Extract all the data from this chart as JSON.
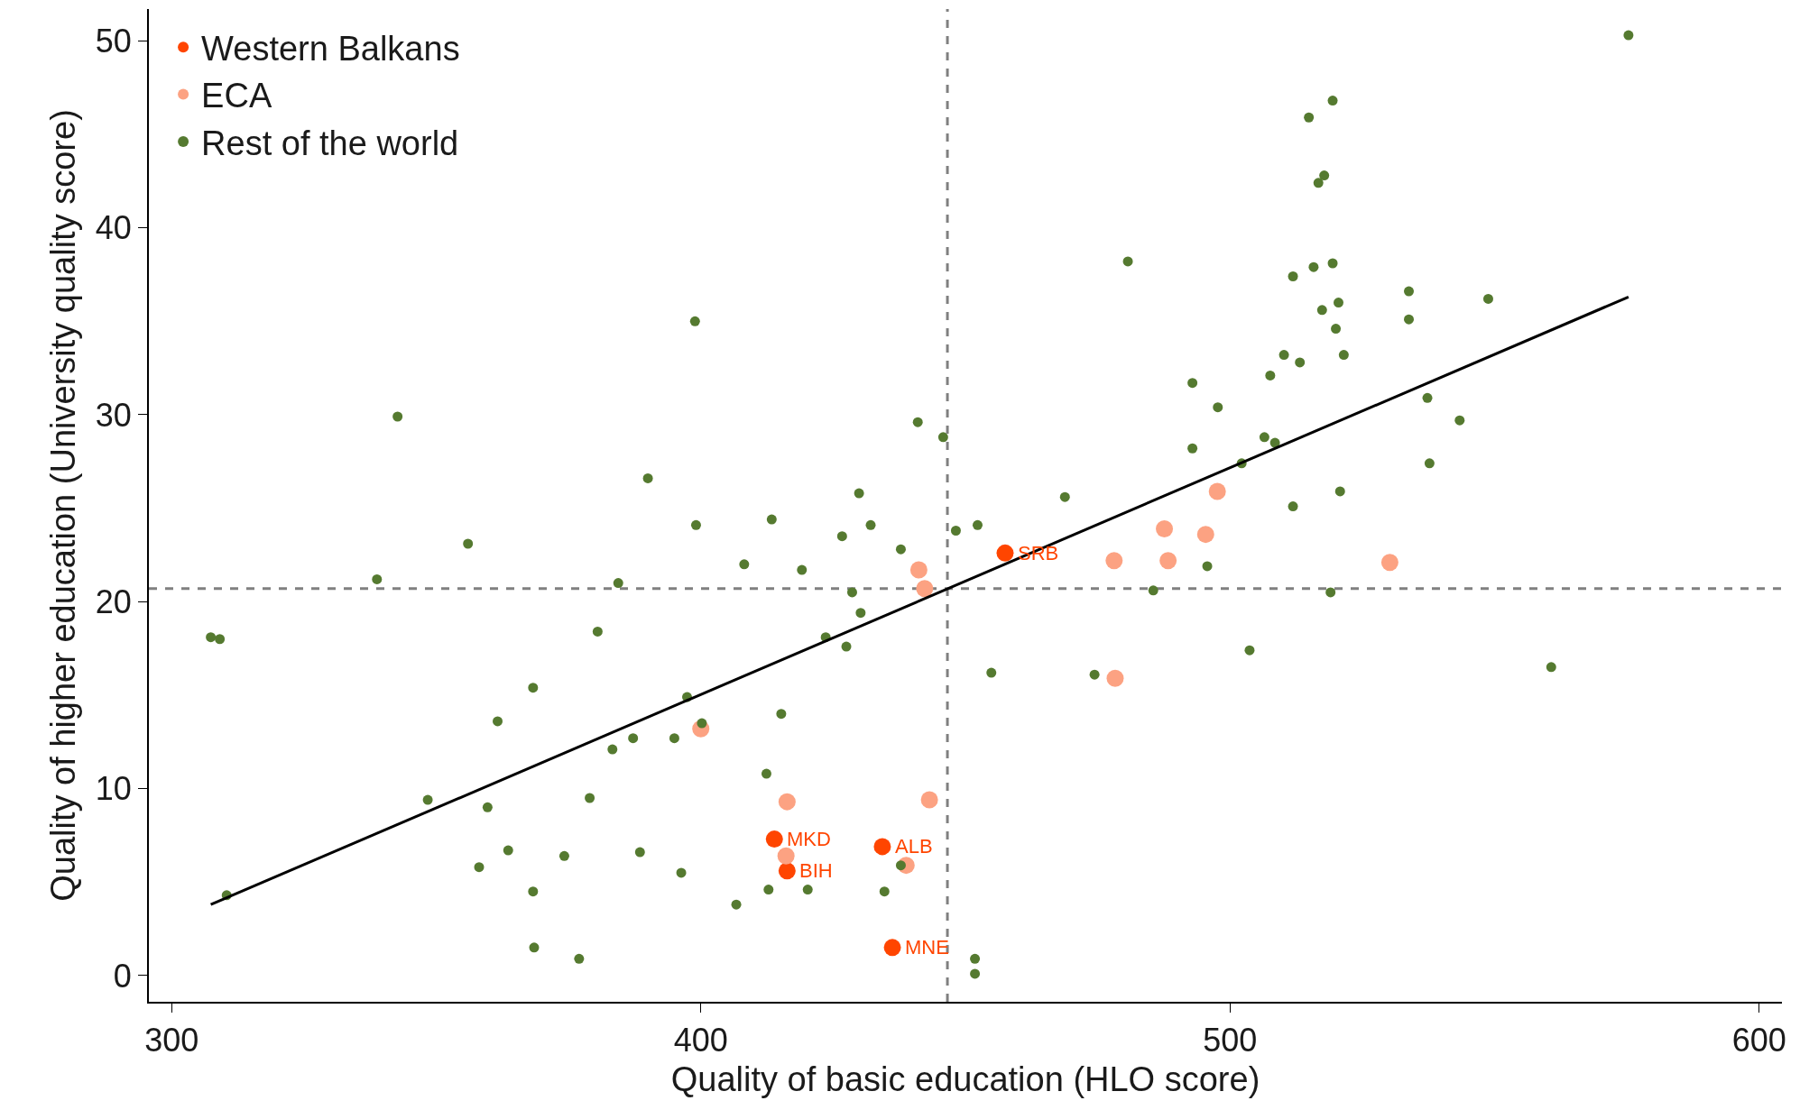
{
  "chart_data": {
    "type": "scatter",
    "xlabel": "Quality of basic education (HLO score)",
    "ylabel": "Quality of higher education (University quality score)",
    "xlim": [
      295.7,
      604.3
    ],
    "xticks": [
      300,
      400,
      500,
      600
    ],
    "ylim": [
      -1.4,
      51.7
    ],
    "yticks": [
      0,
      10,
      20,
      30,
      40,
      50
    ],
    "grid": false,
    "legend": "top left",
    "marker": "circle",
    "series": [
      {
        "name": "Western Balkans",
        "color": "#ff4500",
        "x": [
          413.9,
          416.3,
          434.3,
          436.2,
          457.5
        ],
        "values": [
          7.3,
          5.6,
          6.9,
          1.5,
          22.6
        ]
      },
      {
        "name": "ECA",
        "color": "#fca282",
        "x": [
          400.0,
          416.3,
          416.1,
          438.8,
          441.2,
          442.3,
          443.2,
          478.1,
          478.3,
          487.6,
          488.3,
          495.4,
          497.6,
          530.2
        ],
        "values": [
          13.2,
          9.3,
          6.4,
          5.9,
          21.7,
          20.7,
          9.4,
          22.2,
          15.9,
          23.9,
          22.2,
          23.6,
          25.9,
          22.1
        ]
      },
      {
        "name": "Rest of the world",
        "color": "#557a30",
        "x": [
          307.4,
          309.1,
          310.4,
          338.8,
          342.7,
          348.4,
          356.0,
          358.1,
          359.7,
          361.6,
          363.6,
          368.3,
          368.3,
          368.5,
          374.2,
          377.0,
          379.0,
          380.5,
          383.3,
          384.4,
          387.2,
          388.5,
          390.0,
          395.0,
          396.3,
          397.4,
          398.9,
          399.1,
          400.2,
          406.7,
          408.2,
          412.4,
          412.8,
          413.4,
          415.2,
          419.1,
          420.2,
          423.6,
          426.7,
          427.5,
          428.6,
          429.9,
          430.2,
          432.1,
          434.7,
          437.8,
          437.8,
          441.0,
          445.8,
          448.2,
          451.8,
          451.8,
          452.3,
          454.9,
          468.8,
          474.4,
          480.7,
          485.5,
          492.9,
          492.9,
          495.7,
          497.7,
          502.2,
          503.7,
          506.5,
          507.6,
          508.5,
          510.2,
          511.9,
          511.9,
          513.2,
          514.9,
          515.8,
          516.7,
          517.8,
          517.4,
          519.0,
          519.4,
          519.4,
          520.0,
          520.5,
          520.8,
          521.5,
          533.8,
          533.8,
          537.3,
          537.7,
          543.4,
          548.8,
          560.7,
          575.3
        ],
        "values": [
          18.1,
          18.0,
          4.3,
          21.2,
          29.9,
          9.4,
          23.1,
          5.8,
          9.0,
          13.6,
          6.7,
          15.4,
          4.5,
          1.5,
          6.4,
          0.9,
          9.5,
          18.4,
          12.1,
          21.0,
          12.7,
          6.6,
          26.6,
          12.7,
          5.5,
          14.9,
          35.0,
          24.1,
          13.5,
          3.8,
          22.0,
          10.8,
          4.6,
          24.4,
          14.0,
          21.7,
          4.6,
          18.1,
          23.5,
          17.6,
          20.5,
          25.8,
          19.4,
          24.1,
          4.5,
          5.9,
          22.8,
          29.6,
          28.8,
          23.8,
          0.9,
          0.1,
          24.1,
          16.2,
          25.6,
          16.1,
          38.2,
          20.6,
          28.2,
          31.7,
          21.9,
          30.4,
          27.4,
          17.4,
          28.8,
          32.1,
          28.5,
          33.2,
          25.1,
          37.4,
          32.8,
          45.9,
          37.9,
          42.4,
          42.8,
          35.6,
          20.5,
          46.8,
          38.1,
          34.6,
          36.0,
          25.9,
          33.2,
          36.6,
          35.1,
          30.9,
          27.4,
          29.7,
          36.2,
          16.5,
          50.3
        ]
      },
      {
        "type": "line",
        "color": "#000000",
        "line_style": "solid",
        "marker": "none",
        "x": [
          307.4,
          575.3
        ],
        "values": [
          3.8,
          36.3
        ]
      }
    ],
    "ref_lines": [
      {
        "axis": "x",
        "value": 446.6,
        "color": "#808080",
        "line_style": "dashed"
      },
      {
        "axis": "y",
        "value": 20.7,
        "color": "#808080",
        "line_style": "dashed"
      }
    ],
    "annotations": [
      {
        "text": "MKD",
        "x": 413.9,
        "y": 7.3
      },
      {
        "text": "BIH",
        "x": 416.3,
        "y": 5.6
      },
      {
        "text": "ALB",
        "x": 434.3,
        "y": 6.9
      },
      {
        "text": "MNE",
        "x": 436.2,
        "y": 1.5
      },
      {
        "text": "SRB",
        "x": 457.5,
        "y": 22.6
      }
    ]
  }
}
